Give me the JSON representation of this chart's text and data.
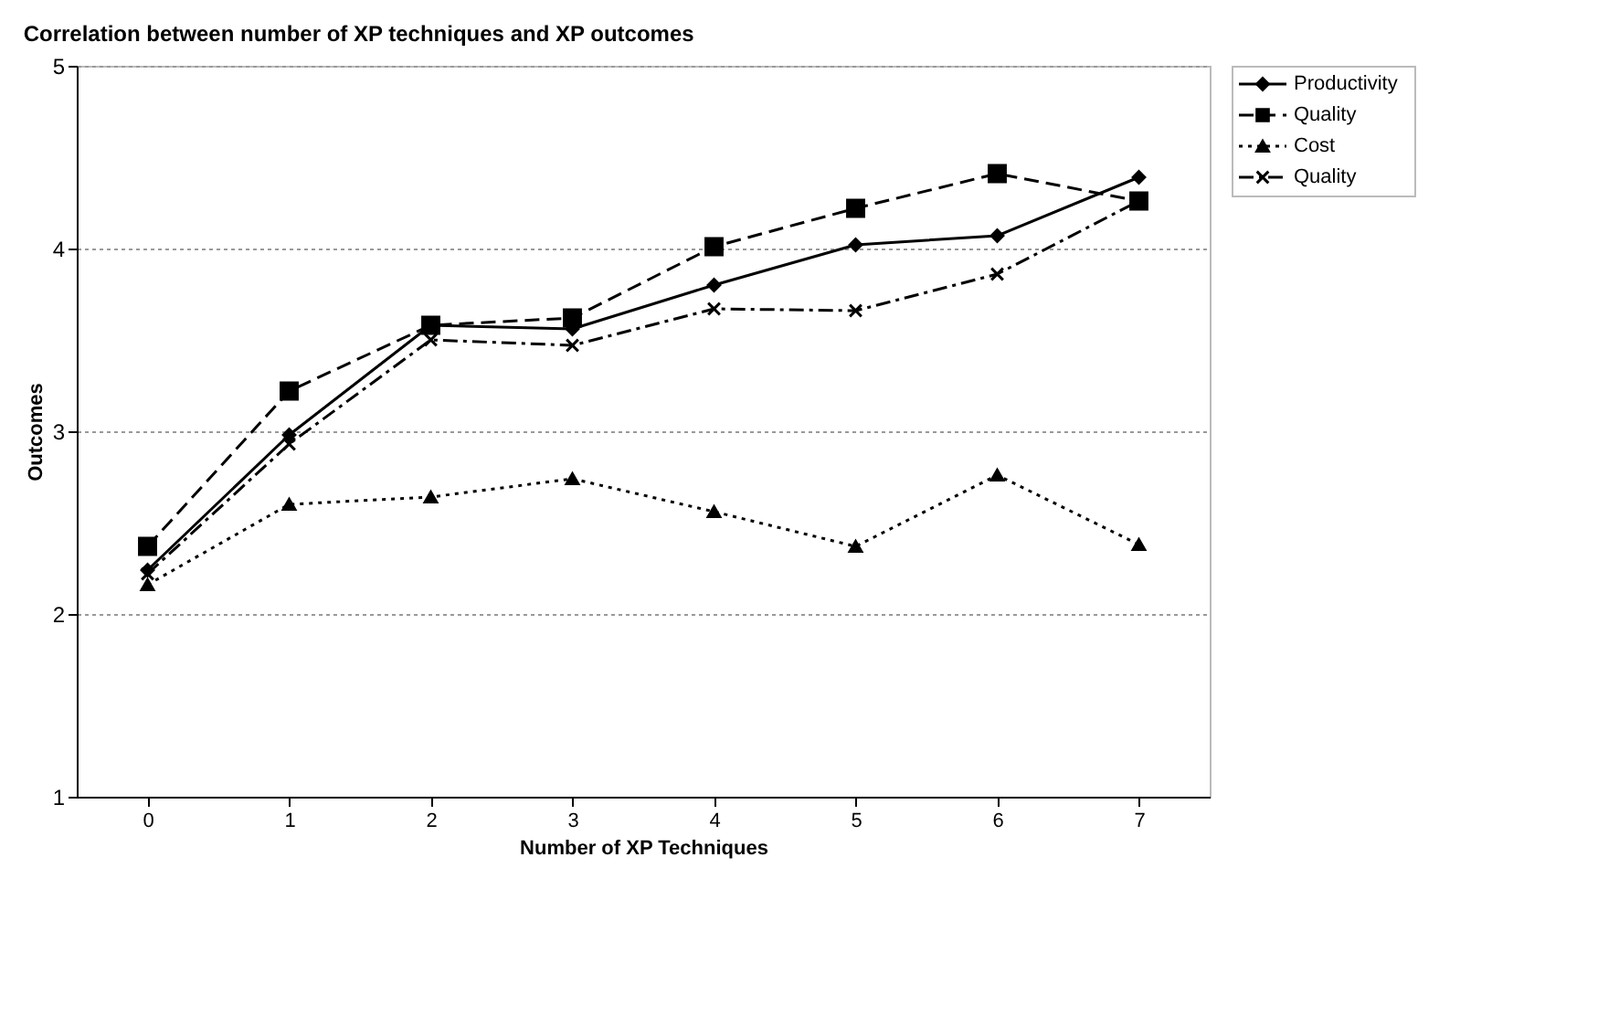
{
  "chart_data": {
    "type": "line",
    "title": "Correlation between number of XP techniques and XP outcomes",
    "xlabel": "Number of XP Techniques",
    "ylabel": "Outcomes",
    "categories": [
      "0",
      "1",
      "2",
      "3",
      "4",
      "5",
      "6",
      "7"
    ],
    "series": [
      {
        "name": "Productivity",
        "color": "#000000",
        "marker": "diamond",
        "line_style": "solid",
        "values": [
          2.24,
          2.98,
          3.58,
          3.56,
          3.8,
          4.02,
          4.07,
          4.39
        ]
      },
      {
        "name": "Quality",
        "color": "#000000",
        "marker": "square",
        "line_style": "dashed",
        "values": [
          2.37,
          3.22,
          3.58,
          3.62,
          4.01,
          4.22,
          4.41,
          4.26
        ]
      },
      {
        "name": "Cost",
        "color": "#000000",
        "marker": "triangle",
        "line_style": "dotted",
        "values": [
          2.16,
          2.6,
          2.64,
          2.74,
          2.56,
          2.37,
          2.76,
          2.38
        ]
      },
      {
        "name": "Quality",
        "color": "#000000",
        "marker": "cross",
        "line_style": "dashdot",
        "values": [
          2.22,
          2.93,
          3.5,
          3.47,
          3.67,
          3.66,
          3.86,
          4.26
        ]
      }
    ],
    "ylim": [
      1,
      5
    ],
    "yticks": [
      1,
      2,
      3,
      4,
      5
    ],
    "grid": "y",
    "legend": "right"
  }
}
